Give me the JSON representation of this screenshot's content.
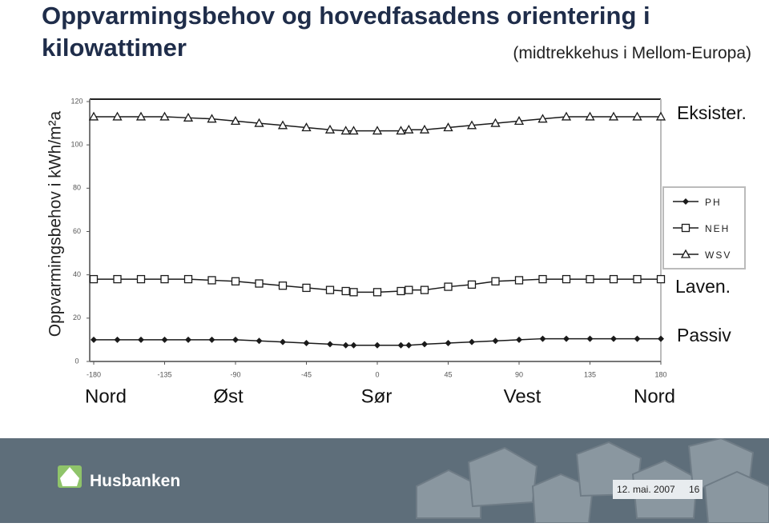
{
  "chart_data": {
    "type": "line",
    "title": "Oppvarmingsbehov og hovedfasadens orientering i kilowattimer",
    "subtitle": "(midtrekkehus i Mellom-Europa)",
    "y_label": "Oppvarmingsbehov i kWh/m²a",
    "x": [
      -180,
      -165,
      -150,
      -135,
      -120,
      -105,
      -90,
      -75,
      -60,
      -45,
      -30,
      -20,
      -15,
      0,
      15,
      20,
      30,
      45,
      60,
      75,
      90,
      105,
      120,
      135,
      150,
      165,
      180
    ],
    "series": [
      {
        "name": "PH",
        "color": "#1a1a1a",
        "marker": "diamond",
        "values": [
          10,
          10,
          10,
          10,
          10,
          10,
          10,
          9.5,
          9,
          8.5,
          8,
          7.5,
          7.5,
          7.5,
          7.5,
          7.5,
          8,
          8.5,
          9,
          9.5,
          10,
          10.5,
          10.5,
          10.5,
          10.5,
          10.5,
          10.5
        ]
      },
      {
        "name": "NEH",
        "color": "#1a1a1a",
        "marker": "square",
        "values": [
          38,
          38,
          38,
          38,
          38,
          37.5,
          37,
          36,
          35,
          34,
          33,
          32.5,
          32,
          32,
          32.5,
          33,
          33,
          34.5,
          35.5,
          37,
          37.5,
          38,
          38,
          38,
          38,
          38,
          38
        ]
      },
      {
        "name": "WSV",
        "color": "#1a1a1a",
        "marker": "triangle",
        "values": [
          113,
          113,
          113,
          113,
          112.5,
          112,
          111,
          110,
          109,
          108,
          107,
          106.5,
          106.5,
          106.5,
          106.5,
          107,
          107,
          108,
          109,
          110,
          111,
          112,
          113,
          113,
          113,
          113,
          113
        ]
      }
    ],
    "xlim": [
      -180,
      180
    ],
    "xticks": [
      -180,
      -135,
      -90,
      -45,
      0,
      45,
      90,
      135,
      180
    ],
    "ylim": [
      0,
      120
    ],
    "yticks": [
      0,
      20,
      40,
      60,
      80,
      100,
      120
    ],
    "direction_labels": [
      "Nord",
      "Øst",
      "Sør",
      "Vest",
      "Nord"
    ],
    "annotations": [
      "Eksister.",
      "Laven.",
      "Passiv"
    ]
  },
  "footer": {
    "brand": "Husbanken",
    "date": "12. mai. 2007",
    "page": "16"
  }
}
